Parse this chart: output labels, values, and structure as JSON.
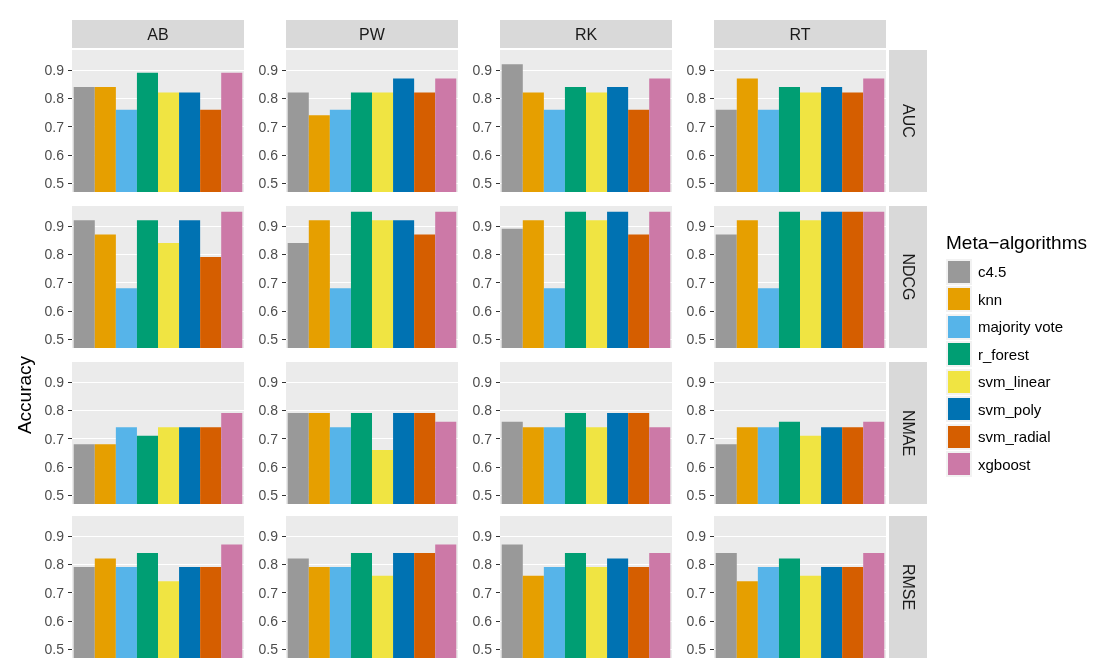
{
  "chart_data": [
    {
      "type": "bar",
      "title": "AB",
      "categories": [
        null
      ],
      "ylim": [
        0.47,
        0.97
      ],
      "yticks": [
        0.5,
        0.6,
        0.7,
        0.8,
        0.9
      ],
      "grid": true,
      "tick_labels": "y",
      "legend": "right",
      "legend_title": "Meta−algorithms",
      "series": [
        {
          "name": "c4.5",
          "color": "#999999",
          "values": [
            0.84
          ]
        },
        {
          "name": "knn",
          "color": "#e69f00",
          "values": [
            0.84
          ]
        },
        {
          "name": "majority vote",
          "color": "#56b4e9",
          "values": [
            0.76
          ]
        },
        {
          "name": "r_forest",
          "color": "#009e73",
          "values": [
            0.89
          ]
        },
        {
          "name": "svm_linear",
          "color": "#f0e442",
          "values": [
            0.82
          ]
        },
        {
          "name": "svm_poly",
          "color": "#0072b2",
          "values": [
            0.82
          ]
        },
        {
          "name": "svm_radial",
          "color": "#d55e00",
          "values": [
            0.76
          ]
        },
        {
          "name": "xgboost",
          "color": "#cc79a7",
          "values": [
            0.89
          ]
        }
      ]
    },
    {
      "type": "bar",
      "title": "PW",
      "categories": [
        null
      ],
      "ylim": [
        0.47,
        0.97
      ],
      "yticks": [
        0.5,
        0.6,
        0.7,
        0.8,
        0.9
      ],
      "grid": true,
      "tick_labels": "y",
      "series": [
        {
          "color": "#999999",
          "values": [
            0.82
          ]
        },
        {
          "color": "#e69f00",
          "values": [
            0.74
          ]
        },
        {
          "color": "#56b4e9",
          "values": [
            0.76
          ]
        },
        {
          "color": "#009e73",
          "values": [
            0.82
          ]
        },
        {
          "color": "#f0e442",
          "values": [
            0.82
          ]
        },
        {
          "color": "#0072b2",
          "values": [
            0.87
          ]
        },
        {
          "color": "#d55e00",
          "values": [
            0.82
          ]
        },
        {
          "color": "#cc79a7",
          "values": [
            0.87
          ]
        }
      ]
    },
    {
      "type": "bar",
      "title": "RK",
      "categories": [
        null
      ],
      "ylim": [
        0.47,
        0.97
      ],
      "yticks": [
        0.5,
        0.6,
        0.7,
        0.8,
        0.9
      ],
      "grid": true,
      "tick_labels": "y",
      "series": [
        {
          "color": "#999999",
          "values": [
            0.92
          ]
        },
        {
          "color": "#e69f00",
          "values": [
            0.82
          ]
        },
        {
          "color": "#56b4e9",
          "values": [
            0.76
          ]
        },
        {
          "color": "#009e73",
          "values": [
            0.84
          ]
        },
        {
          "color": "#f0e442",
          "values": [
            0.82
          ]
        },
        {
          "color": "#0072b2",
          "values": [
            0.84
          ]
        },
        {
          "color": "#d55e00",
          "values": [
            0.76
          ]
        },
        {
          "color": "#cc79a7",
          "values": [
            0.87
          ]
        }
      ]
    },
    {
      "type": "bar",
      "title": "RT",
      "y2label": "AUC",
      "categories": [
        null
      ],
      "ylim": [
        0.47,
        0.97
      ],
      "yticks": [
        0.5,
        0.6,
        0.7,
        0.8,
        0.9
      ],
      "grid": true,
      "tick_labels": "y",
      "series": [
        {
          "color": "#999999",
          "values": [
            0.76
          ]
        },
        {
          "color": "#e69f00",
          "values": [
            0.87
          ]
        },
        {
          "color": "#56b4e9",
          "values": [
            0.76
          ]
        },
        {
          "color": "#009e73",
          "values": [
            0.84
          ]
        },
        {
          "color": "#f0e442",
          "values": [
            0.82
          ]
        },
        {
          "color": "#0072b2",
          "values": [
            0.84
          ]
        },
        {
          "color": "#d55e00",
          "values": [
            0.82
          ]
        },
        {
          "color": "#cc79a7",
          "values": [
            0.87
          ]
        }
      ]
    },
    {
      "type": "bar",
      "categories": [
        null
      ],
      "ylim": [
        0.47,
        0.97
      ],
      "yticks": [
        0.5,
        0.6,
        0.7,
        0.8,
        0.9
      ],
      "grid": true,
      "tick_labels": "y",
      "ylabel": "Accuracy",
      "series": [
        {
          "color": "#999999",
          "values": [
            0.92
          ]
        },
        {
          "color": "#e69f00",
          "values": [
            0.87
          ]
        },
        {
          "color": "#56b4e9",
          "values": [
            0.68
          ]
        },
        {
          "color": "#009e73",
          "values": [
            0.92
          ]
        },
        {
          "color": "#f0e442",
          "values": [
            0.84
          ]
        },
        {
          "color": "#0072b2",
          "values": [
            0.92
          ]
        },
        {
          "color": "#d55e00",
          "values": [
            0.79
          ]
        },
        {
          "color": "#cc79a7",
          "values": [
            0.95
          ]
        }
      ]
    },
    {
      "type": "bar",
      "categories": [
        null
      ],
      "ylim": [
        0.47,
        0.97
      ],
      "yticks": [
        0.5,
        0.6,
        0.7,
        0.8,
        0.9
      ],
      "grid": true,
      "tick_labels": "y",
      "series": [
        {
          "color": "#999999",
          "values": [
            0.84
          ]
        },
        {
          "color": "#e69f00",
          "values": [
            0.92
          ]
        },
        {
          "color": "#56b4e9",
          "values": [
            0.68
          ]
        },
        {
          "color": "#009e73",
          "values": [
            0.95
          ]
        },
        {
          "color": "#f0e442",
          "values": [
            0.92
          ]
        },
        {
          "color": "#0072b2",
          "values": [
            0.92
          ]
        },
        {
          "color": "#d55e00",
          "values": [
            0.87
          ]
        },
        {
          "color": "#cc79a7",
          "values": [
            0.95
          ]
        }
      ]
    },
    {
      "type": "bar",
      "categories": [
        null
      ],
      "ylim": [
        0.47,
        0.97
      ],
      "yticks": [
        0.5,
        0.6,
        0.7,
        0.8,
        0.9
      ],
      "grid": true,
      "tick_labels": "y",
      "series": [
        {
          "color": "#999999",
          "values": [
            0.89
          ]
        },
        {
          "color": "#e69f00",
          "values": [
            0.92
          ]
        },
        {
          "color": "#56b4e9",
          "values": [
            0.68
          ]
        },
        {
          "color": "#009e73",
          "values": [
            0.95
          ]
        },
        {
          "color": "#f0e442",
          "values": [
            0.92
          ]
        },
        {
          "color": "#0072b2",
          "values": [
            0.95
          ]
        },
        {
          "color": "#d55e00",
          "values": [
            0.87
          ]
        },
        {
          "color": "#cc79a7",
          "values": [
            0.95
          ]
        }
      ]
    },
    {
      "type": "bar",
      "y2label": "NDCG",
      "categories": [
        null
      ],
      "ylim": [
        0.47,
        0.97
      ],
      "yticks": [
        0.5,
        0.6,
        0.7,
        0.8,
        0.9
      ],
      "grid": true,
      "tick_labels": "y",
      "series": [
        {
          "color": "#999999",
          "values": [
            0.87
          ]
        },
        {
          "color": "#e69f00",
          "values": [
            0.92
          ]
        },
        {
          "color": "#56b4e9",
          "values": [
            0.68
          ]
        },
        {
          "color": "#009e73",
          "values": [
            0.95
          ]
        },
        {
          "color": "#f0e442",
          "values": [
            0.92
          ]
        },
        {
          "color": "#0072b2",
          "values": [
            0.95
          ]
        },
        {
          "color": "#d55e00",
          "values": [
            0.95
          ]
        },
        {
          "color": "#cc79a7",
          "values": [
            0.95
          ]
        }
      ]
    },
    {
      "type": "bar",
      "categories": [
        null
      ],
      "ylim": [
        0.47,
        0.97
      ],
      "yticks": [
        0.5,
        0.6,
        0.7,
        0.8,
        0.9
      ],
      "grid": true,
      "tick_labels": "y",
      "series": [
        {
          "color": "#999999",
          "values": [
            0.68
          ]
        },
        {
          "color": "#e69f00",
          "values": [
            0.68
          ]
        },
        {
          "color": "#56b4e9",
          "values": [
            0.74
          ]
        },
        {
          "color": "#009e73",
          "values": [
            0.71
          ]
        },
        {
          "color": "#f0e442",
          "values": [
            0.74
          ]
        },
        {
          "color": "#0072b2",
          "values": [
            0.74
          ]
        },
        {
          "color": "#d55e00",
          "values": [
            0.74
          ]
        },
        {
          "color": "#cc79a7",
          "values": [
            0.79
          ]
        }
      ]
    },
    {
      "type": "bar",
      "categories": [
        null
      ],
      "ylim": [
        0.47,
        0.97
      ],
      "yticks": [
        0.5,
        0.6,
        0.7,
        0.8,
        0.9
      ],
      "grid": true,
      "tick_labels": "y",
      "series": [
        {
          "color": "#999999",
          "values": [
            0.79
          ]
        },
        {
          "color": "#e69f00",
          "values": [
            0.79
          ]
        },
        {
          "color": "#56b4e9",
          "values": [
            0.74
          ]
        },
        {
          "color": "#009e73",
          "values": [
            0.79
          ]
        },
        {
          "color": "#f0e442",
          "values": [
            0.66
          ]
        },
        {
          "color": "#0072b2",
          "values": [
            0.79
          ]
        },
        {
          "color": "#d55e00",
          "values": [
            0.79
          ]
        },
        {
          "color": "#cc79a7",
          "values": [
            0.76
          ]
        }
      ]
    },
    {
      "type": "bar",
      "categories": [
        null
      ],
      "ylim": [
        0.47,
        0.97
      ],
      "yticks": [
        0.5,
        0.6,
        0.7,
        0.8,
        0.9
      ],
      "grid": true,
      "tick_labels": "y",
      "series": [
        {
          "color": "#999999",
          "values": [
            0.76
          ]
        },
        {
          "color": "#e69f00",
          "values": [
            0.74
          ]
        },
        {
          "color": "#56b4e9",
          "values": [
            0.74
          ]
        },
        {
          "color": "#009e73",
          "values": [
            0.79
          ]
        },
        {
          "color": "#f0e442",
          "values": [
            0.74
          ]
        },
        {
          "color": "#0072b2",
          "values": [
            0.79
          ]
        },
        {
          "color": "#d55e00",
          "values": [
            0.79
          ]
        },
        {
          "color": "#cc79a7",
          "values": [
            0.74
          ]
        }
      ]
    },
    {
      "type": "bar",
      "y2label": "NMAE",
      "categories": [
        null
      ],
      "ylim": [
        0.47,
        0.97
      ],
      "yticks": [
        0.5,
        0.6,
        0.7,
        0.8,
        0.9
      ],
      "grid": true,
      "tick_labels": "y",
      "series": [
        {
          "color": "#999999",
          "values": [
            0.68
          ]
        },
        {
          "color": "#e69f00",
          "values": [
            0.74
          ]
        },
        {
          "color": "#56b4e9",
          "values": [
            0.74
          ]
        },
        {
          "color": "#009e73",
          "values": [
            0.76
          ]
        },
        {
          "color": "#f0e442",
          "values": [
            0.71
          ]
        },
        {
          "color": "#0072b2",
          "values": [
            0.74
          ]
        },
        {
          "color": "#d55e00",
          "values": [
            0.74
          ]
        },
        {
          "color": "#cc79a7",
          "values": [
            0.76
          ]
        }
      ]
    },
    {
      "type": "bar",
      "categories": [
        null
      ],
      "ylim": [
        0.47,
        0.97
      ],
      "yticks": [
        0.5,
        0.6,
        0.7,
        0.8,
        0.9
      ],
      "grid": true,
      "tick_labels": "y",
      "series": [
        {
          "color": "#999999",
          "values": [
            0.79
          ]
        },
        {
          "color": "#e69f00",
          "values": [
            0.82
          ]
        },
        {
          "color": "#56b4e9",
          "values": [
            0.79
          ]
        },
        {
          "color": "#009e73",
          "values": [
            0.84
          ]
        },
        {
          "color": "#f0e442",
          "values": [
            0.74
          ]
        },
        {
          "color": "#0072b2",
          "values": [
            0.79
          ]
        },
        {
          "color": "#d55e00",
          "values": [
            0.79
          ]
        },
        {
          "color": "#cc79a7",
          "values": [
            0.87
          ]
        }
      ]
    },
    {
      "type": "bar",
      "categories": [
        null
      ],
      "ylim": [
        0.47,
        0.97
      ],
      "yticks": [
        0.5,
        0.6,
        0.7,
        0.8,
        0.9
      ],
      "grid": true,
      "tick_labels": "y",
      "series": [
        {
          "color": "#999999",
          "values": [
            0.82
          ]
        },
        {
          "color": "#e69f00",
          "values": [
            0.79
          ]
        },
        {
          "color": "#56b4e9",
          "values": [
            0.79
          ]
        },
        {
          "color": "#009e73",
          "values": [
            0.84
          ]
        },
        {
          "color": "#f0e442",
          "values": [
            0.76
          ]
        },
        {
          "color": "#0072b2",
          "values": [
            0.84
          ]
        },
        {
          "color": "#d55e00",
          "values": [
            0.84
          ]
        },
        {
          "color": "#cc79a7",
          "values": [
            0.87
          ]
        }
      ]
    },
    {
      "type": "bar",
      "categories": [
        null
      ],
      "ylim": [
        0.47,
        0.97
      ],
      "yticks": [
        0.5,
        0.6,
        0.7,
        0.8,
        0.9
      ],
      "grid": true,
      "tick_labels": "y",
      "series": [
        {
          "color": "#999999",
          "values": [
            0.87
          ]
        },
        {
          "color": "#e69f00",
          "values": [
            0.76
          ]
        },
        {
          "color": "#56b4e9",
          "values": [
            0.79
          ]
        },
        {
          "color": "#009e73",
          "values": [
            0.84
          ]
        },
        {
          "color": "#f0e442",
          "values": [
            0.79
          ]
        },
        {
          "color": "#0072b2",
          "values": [
            0.82
          ]
        },
        {
          "color": "#d55e00",
          "values": [
            0.79
          ]
        },
        {
          "color": "#cc79a7",
          "values": [
            0.84
          ]
        }
      ]
    },
    {
      "type": "bar",
      "y2label": "RMSE",
      "categories": [
        null
      ],
      "ylim": [
        0.47,
        0.97
      ],
      "yticks": [
        0.5,
        0.6,
        0.7,
        0.8,
        0.9
      ],
      "grid": true,
      "tick_labels": "y",
      "series": [
        {
          "color": "#999999",
          "values": [
            0.84
          ]
        },
        {
          "color": "#e69f00",
          "values": [
            0.74
          ]
        },
        {
          "color": "#56b4e9",
          "values": [
            0.79
          ]
        },
        {
          "color": "#009e73",
          "values": [
            0.82
          ]
        },
        {
          "color": "#f0e442",
          "values": [
            0.76
          ]
        },
        {
          "color": "#0072b2",
          "values": [
            0.79
          ]
        },
        {
          "color": "#d55e00",
          "values": [
            0.79
          ]
        },
        {
          "color": "#cc79a7",
          "values": [
            0.84
          ]
        }
      ]
    }
  ]
}
